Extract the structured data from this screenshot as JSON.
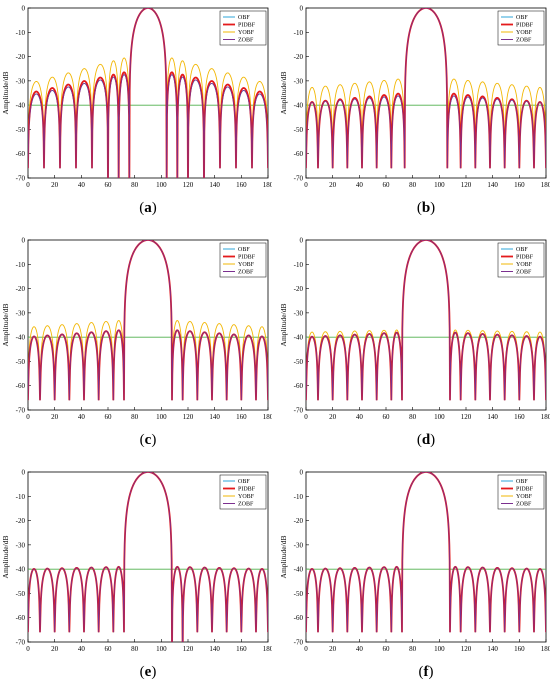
{
  "figure": {
    "y_label": "Amplitude/dB",
    "x_label": "angle/°",
    "x_ticks": [
      0,
      20,
      40,
      60,
      80,
      100,
      120,
      140,
      160,
      180
    ],
    "y_ticks": [
      0,
      -10,
      -20,
      -30,
      -40,
      -50,
      -60,
      -70
    ],
    "legend_position": "top-right",
    "grid": false,
    "reference_level_db": -40,
    "reference_color": "#4daf4a",
    "series_colors": {
      "OBF": "#2ca6d8",
      "PIDBF": "#e41a1c",
      "YOBF": "#f2b705",
      "ZOBF": "#7b2f8f"
    },
    "panels": [
      {
        "label": "(",
        "letter": "a",
        "close": ")"
      },
      {
        "label": "(",
        "letter": "b",
        "close": ")"
      },
      {
        "label": "(",
        "letter": "c",
        "close": ")"
      },
      {
        "label": "(",
        "letter": "d",
        "close": ")"
      },
      {
        "label": "(",
        "letter": "e",
        "close": ")"
      },
      {
        "label": "(",
        "letter": "f",
        "close": ")"
      }
    ]
  },
  "chart_data": [
    {
      "panel": "a",
      "type": "line",
      "xlabel": "angle/°",
      "ylabel": "Amplitude/dB",
      "xlim": [
        0,
        180
      ],
      "ylim": [
        -70,
        0
      ],
      "main_lobe": {
        "center": 90,
        "first_nulls": [
          76,
          104
        ]
      },
      "sidelobe_nulls": [
        12,
        24,
        36,
        48,
        60,
        68,
        112,
        120,
        132,
        144,
        156,
        168
      ],
      "deep_nulls_below_axis": [
        60,
        68,
        112,
        120
      ],
      "series": [
        {
          "name": "OBF",
          "first_sidelobe_db": -27,
          "far_sidelobe_db": -36
        },
        {
          "name": "PIDBF",
          "first_sidelobe_db": -26,
          "far_sidelobe_db": -35
        },
        {
          "name": "YOBF",
          "first_sidelobe_db": -20,
          "far_sidelobe_db": -31
        },
        {
          "name": "ZOBF",
          "first_sidelobe_db": -27,
          "far_sidelobe_db": -36
        }
      ]
    },
    {
      "panel": "b",
      "type": "line",
      "xlabel": "angle/°",
      "ylabel": "Amplitude/dB",
      "xlim": [
        0,
        180
      ],
      "ylim": [
        -70,
        0
      ],
      "main_lobe": {
        "center": 90,
        "first_nulls": [
          74,
          106
        ]
      },
      "sidelobe_nulls": [
        9,
        20,
        31,
        42,
        53,
        64,
        116,
        127,
        138,
        149,
        160,
        171
      ],
      "deep_nulls_below_axis": [],
      "series": [
        {
          "name": "OBF",
          "first_sidelobe_db": -36,
          "far_sidelobe_db": -39
        },
        {
          "name": "PIDBF",
          "first_sidelobe_db": -35,
          "far_sidelobe_db": -39
        },
        {
          "name": "YOBF",
          "first_sidelobe_db": -29,
          "far_sidelobe_db": -33
        },
        {
          "name": "ZOBF",
          "first_sidelobe_db": -36,
          "far_sidelobe_db": -39
        }
      ]
    },
    {
      "panel": "c",
      "type": "line",
      "xlabel": "angle/°",
      "ylabel": "Amplitude/dB",
      "xlim": [
        0,
        180
      ],
      "ylim": [
        -70,
        0
      ],
      "main_lobe": {
        "center": 90,
        "first_nulls": [
          72,
          108
        ]
      },
      "sidelobe_nulls": [
        9,
        20,
        31,
        42,
        53,
        64,
        116,
        127,
        138,
        149,
        160,
        171
      ],
      "deep_nulls_below_axis": [],
      "series": [
        {
          "name": "OBF",
          "first_sidelobe_db": -37,
          "far_sidelobe_db": -40
        },
        {
          "name": "PIDBF",
          "first_sidelobe_db": -37,
          "far_sidelobe_db": -40
        },
        {
          "name": "YOBF",
          "first_sidelobe_db": -33,
          "far_sidelobe_db": -36
        },
        {
          "name": "ZOBF",
          "first_sidelobe_db": -37,
          "far_sidelobe_db": -40
        }
      ]
    },
    {
      "panel": "d",
      "type": "line",
      "xlabel": "angle/°",
      "ylabel": "Amplitude/dB",
      "xlim": [
        0,
        180
      ],
      "ylim": [
        -70,
        0
      ],
      "main_lobe": {
        "center": 90,
        "first_nulls": [
          72,
          108
        ]
      },
      "sidelobe_nulls": [
        9,
        20,
        31,
        42,
        53,
        64,
        116,
        127,
        138,
        149,
        160,
        171
      ],
      "deep_nulls_below_axis": [],
      "series": [
        {
          "name": "OBF",
          "first_sidelobe_db": -38,
          "far_sidelobe_db": -40
        },
        {
          "name": "PIDBF",
          "first_sidelobe_db": -38,
          "far_sidelobe_db": -40
        },
        {
          "name": "YOBF",
          "first_sidelobe_db": -37,
          "far_sidelobe_db": -38
        },
        {
          "name": "ZOBF",
          "first_sidelobe_db": -38,
          "far_sidelobe_db": -40
        }
      ]
    },
    {
      "panel": "e",
      "type": "line",
      "xlabel": "angle/°",
      "ylabel": "Amplitude/dB",
      "xlim": [
        0,
        180
      ],
      "ylim": [
        -70,
        0
      ],
      "main_lobe": {
        "center": 90,
        "first_nulls": [
          72,
          108
        ]
      },
      "sidelobe_nulls": [
        9,
        20,
        31,
        42,
        53,
        64,
        116,
        127,
        138,
        149,
        160,
        171
      ],
      "deep_nulls_below_axis": [
        108
      ],
      "series": [
        {
          "name": "OBF",
          "first_sidelobe_db": -39,
          "far_sidelobe_db": -40
        },
        {
          "name": "PIDBF",
          "first_sidelobe_db": -39,
          "far_sidelobe_db": -40
        },
        {
          "name": "YOBF",
          "first_sidelobe_db": -39,
          "far_sidelobe_db": -40
        },
        {
          "name": "ZOBF",
          "first_sidelobe_db": -39,
          "far_sidelobe_db": -40
        }
      ]
    },
    {
      "panel": "f",
      "type": "line",
      "xlabel": "angle/°",
      "ylabel": "Amplitude/dB",
      "xlim": [
        0,
        180
      ],
      "ylim": [
        -70,
        0
      ],
      "main_lobe": {
        "center": 90,
        "first_nulls": [
          72,
          108
        ]
      },
      "sidelobe_nulls": [
        9,
        20,
        31,
        42,
        53,
        64,
        116,
        127,
        138,
        149,
        160,
        171
      ],
      "deep_nulls_below_axis": [],
      "series": [
        {
          "name": "OBF",
          "first_sidelobe_db": -39,
          "far_sidelobe_db": -40
        },
        {
          "name": "PIDBF",
          "first_sidelobe_db": -39,
          "far_sidelobe_db": -40
        },
        {
          "name": "YOBF",
          "first_sidelobe_db": -39,
          "far_sidelobe_db": -40
        },
        {
          "name": "ZOBF",
          "first_sidelobe_db": -39,
          "far_sidelobe_db": -40
        }
      ]
    }
  ]
}
